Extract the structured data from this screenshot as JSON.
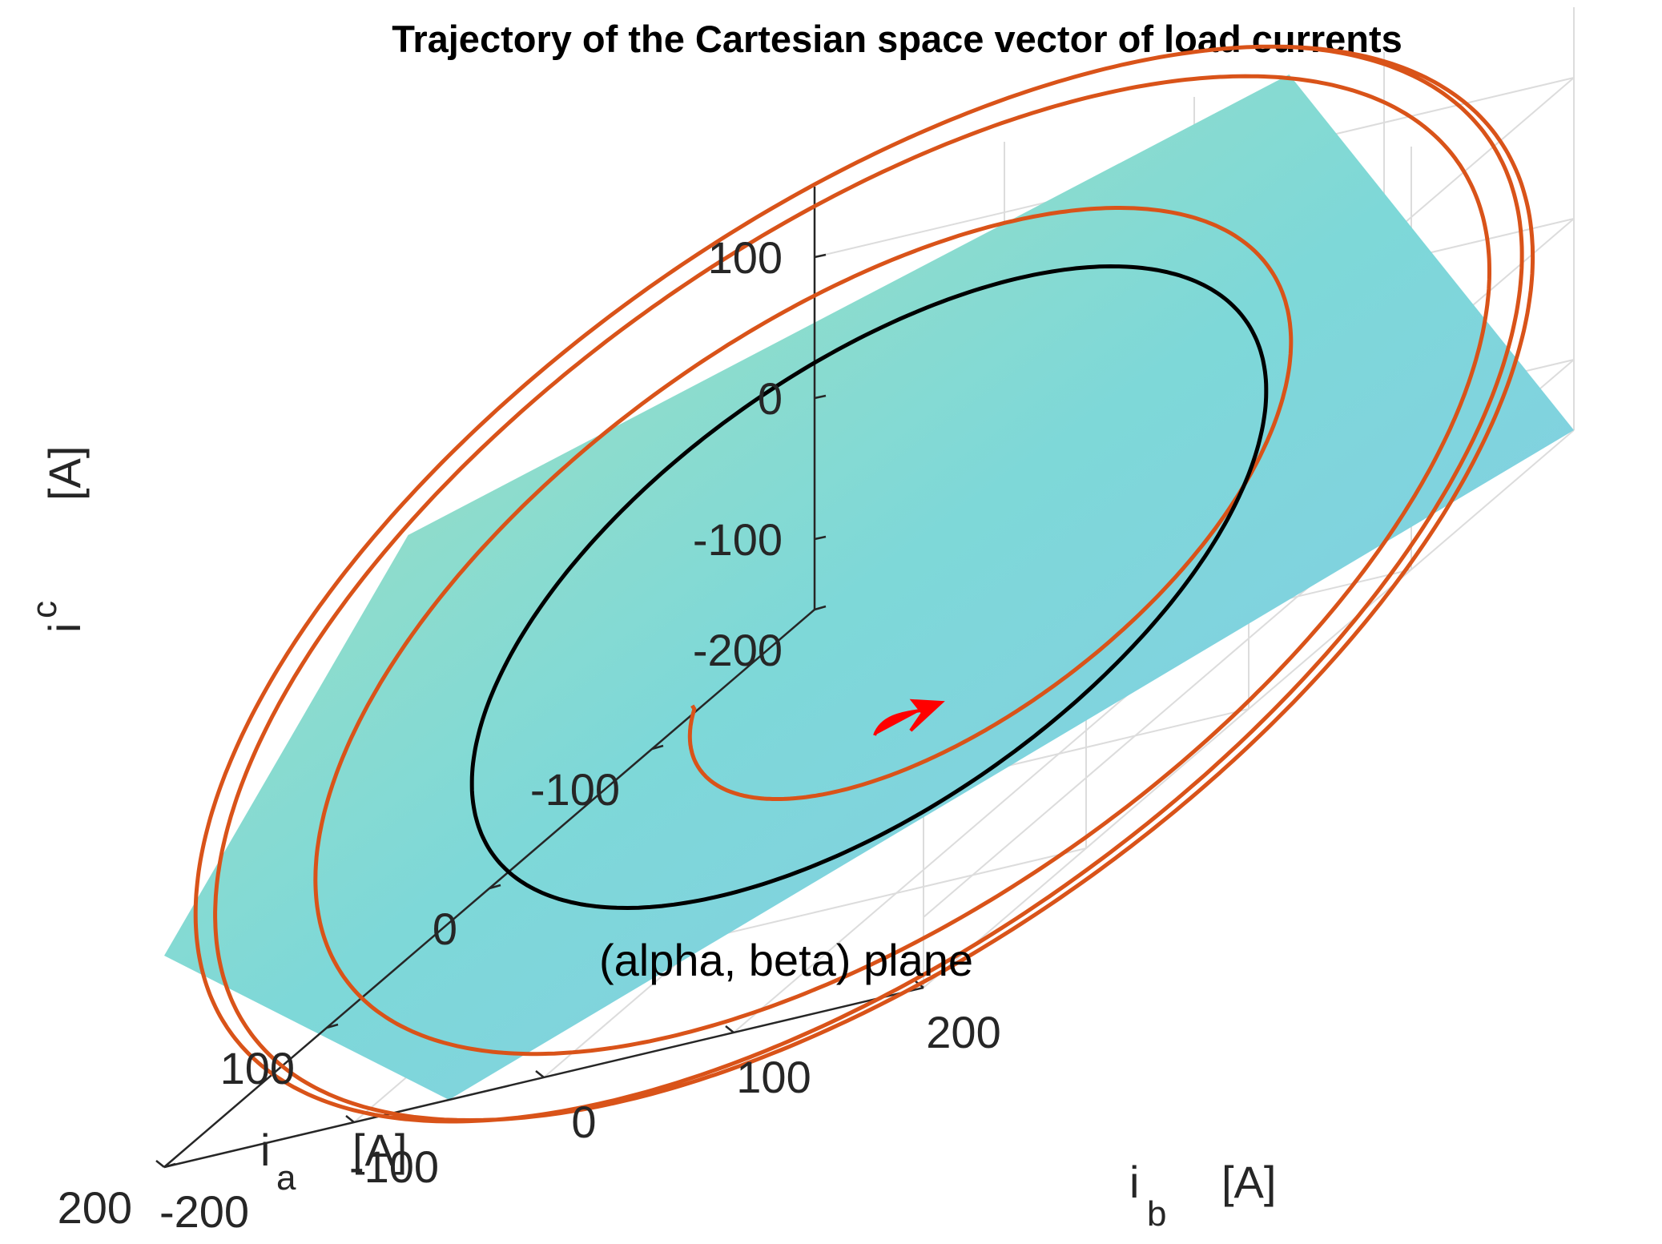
{
  "chart_data": {
    "type": "line3d",
    "title": "Trajectory of the Cartesian space vector of load currents",
    "axes": {
      "x": {
        "label": "i",
        "subscript": "a",
        "unit": "[A]",
        "range": [
          -200,
          200
        ],
        "ticks": [
          -200,
          -100,
          0,
          100,
          200
        ]
      },
      "y": {
        "label": "i",
        "subscript": "b",
        "unit": "[A]",
        "range": [
          -200,
          200
        ],
        "ticks": [
          -200,
          -100,
          0,
          100,
          200
        ]
      },
      "z": {
        "label": "i",
        "subscript": "c",
        "unit": "[A]",
        "range": [
          -150,
          150
        ],
        "ticks": [
          -100,
          0,
          100
        ]
      }
    },
    "grid": true,
    "plane": {
      "label": "(alpha, beta) plane",
      "colormap": [
        "#a9e4b8",
        "#7ed8d8",
        "#86c8ec"
      ]
    },
    "series": [
      {
        "kind": "transient",
        "color": "#d95319",
        "peak_amplitude": 225,
        "settled_amplitude": 210
      },
      {
        "kind": "steady_state",
        "color": "#000000",
        "amplitude": 130
      },
      {
        "kind": "direction_arrow",
        "color": "#ff0000"
      }
    ]
  }
}
